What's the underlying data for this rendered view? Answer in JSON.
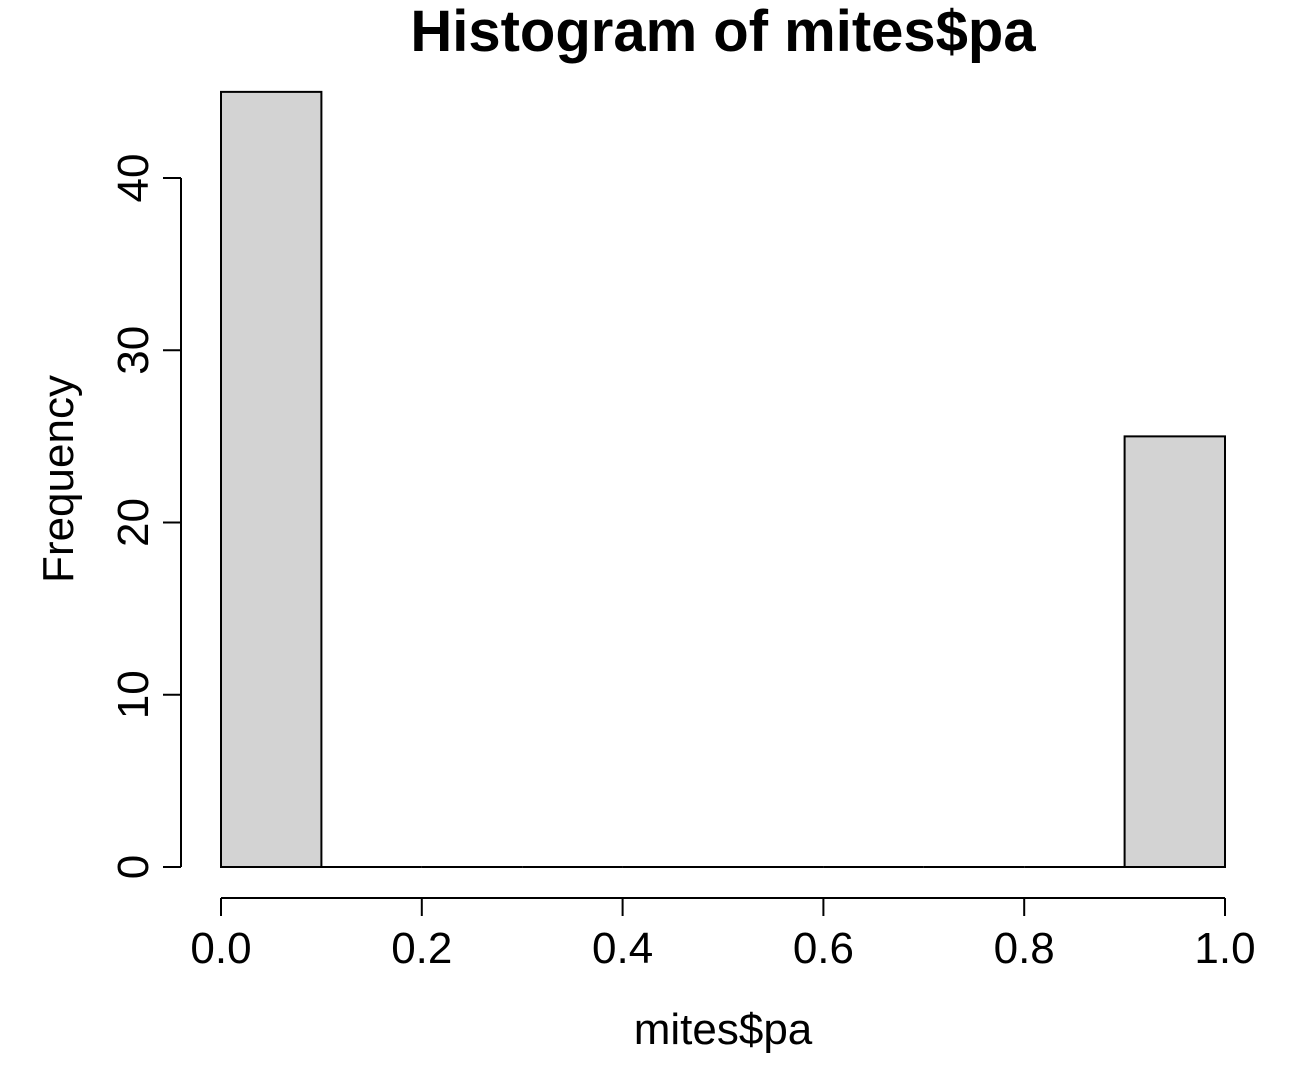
{
  "chart_data": {
    "type": "bar",
    "title": "Histogram of mites$pa",
    "xlabel": "mites$pa",
    "ylabel": "Frequency",
    "bins": [
      {
        "start": 0.0,
        "end": 0.1,
        "count": 45
      },
      {
        "start": 0.1,
        "end": 0.2,
        "count": 0
      },
      {
        "start": 0.2,
        "end": 0.3,
        "count": 0
      },
      {
        "start": 0.3,
        "end": 0.4,
        "count": 0
      },
      {
        "start": 0.4,
        "end": 0.5,
        "count": 0
      },
      {
        "start": 0.5,
        "end": 0.6,
        "count": 0
      },
      {
        "start": 0.6,
        "end": 0.7,
        "count": 0
      },
      {
        "start": 0.7,
        "end": 0.8,
        "count": 0
      },
      {
        "start": 0.8,
        "end": 0.9,
        "count": 0
      },
      {
        "start": 0.9,
        "end": 1.0,
        "count": 25
      }
    ],
    "xlim": [
      0,
      1
    ],
    "ylim": [
      0,
      45
    ],
    "x_ticks": [
      {
        "value": 0.0,
        "label": "0.0"
      },
      {
        "value": 0.2,
        "label": "0.2"
      },
      {
        "value": 0.4,
        "label": "0.4"
      },
      {
        "value": 0.6,
        "label": "0.6"
      },
      {
        "value": 0.8,
        "label": "0.8"
      },
      {
        "value": 1.0,
        "label": "1.0"
      }
    ],
    "y_ticks": [
      {
        "value": 0,
        "label": "0"
      },
      {
        "value": 10,
        "label": "10"
      },
      {
        "value": 20,
        "label": "20"
      },
      {
        "value": 30,
        "label": "30"
      },
      {
        "value": 40,
        "label": "40"
      }
    ],
    "grid": false,
    "legend": "none",
    "bar_color": "#d3d3d3",
    "edge_color": "#000000"
  }
}
